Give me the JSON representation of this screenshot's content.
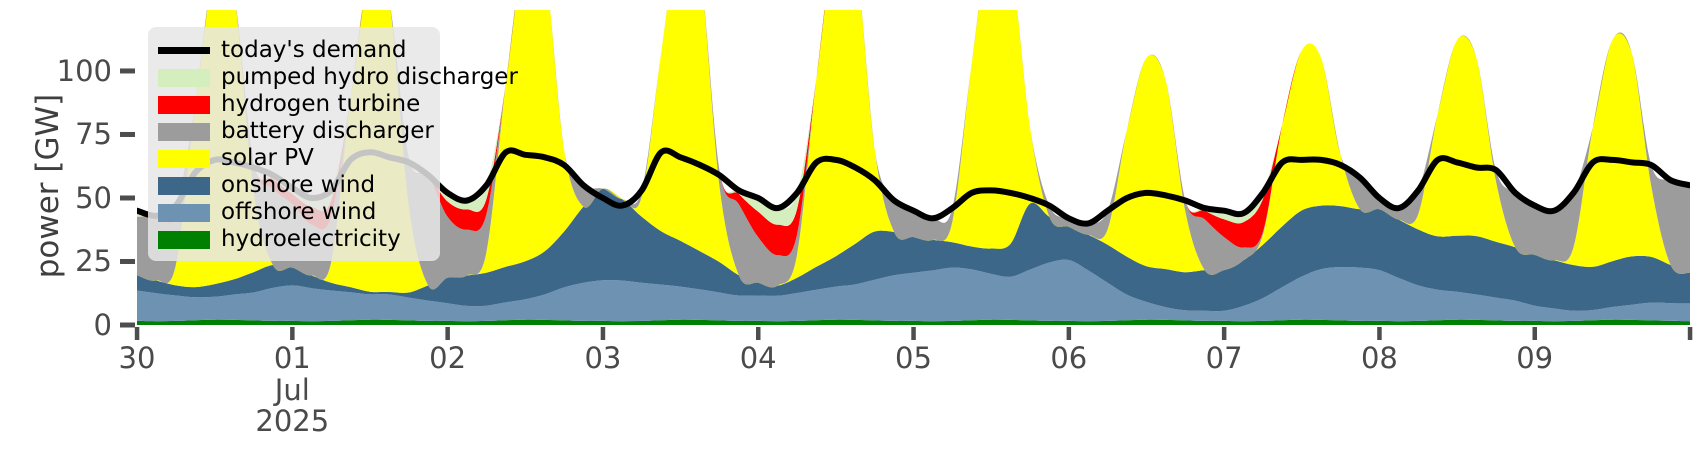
{
  "figure": {
    "background": "#ffffff"
  },
  "axes": {
    "ylabel": "power [GW]",
    "yticks": [
      0,
      25,
      50,
      75,
      100
    ],
    "xticks": [
      {
        "hour": 0,
        "label": "30",
        "sublabels": []
      },
      {
        "hour": 24,
        "label": "01",
        "sublabels": [
          "Jul",
          "2025"
        ]
      },
      {
        "hour": 48,
        "label": "02",
        "sublabels": []
      },
      {
        "hour": 72,
        "label": "03",
        "sublabels": []
      },
      {
        "hour": 96,
        "label": "04",
        "sublabels": []
      },
      {
        "hour": 120,
        "label": "05",
        "sublabels": []
      },
      {
        "hour": 144,
        "label": "06",
        "sublabels": []
      },
      {
        "hour": 168,
        "label": "07",
        "sublabels": []
      },
      {
        "hour": 192,
        "label": "08",
        "sublabels": []
      },
      {
        "hour": 216,
        "label": "09",
        "sublabels": []
      },
      {
        "hour": 240,
        "label": "",
        "sublabels": []
      }
    ],
    "tick_color": "#4d4d4d"
  },
  "legend": {
    "entries": [
      {
        "label": "today's demand",
        "swatch": "line",
        "color": "#000000"
      },
      {
        "label": "pumped hydro discharger",
        "swatch": "patch",
        "color": "#d4efbd"
      },
      {
        "label": "hydrogen turbine",
        "swatch": "patch",
        "color": "#ff0000"
      },
      {
        "label": "battery discharger",
        "swatch": "patch",
        "color": "#9c9c9c"
      },
      {
        "label": "solar PV",
        "swatch": "patch",
        "color": "#ffff00"
      },
      {
        "label": "onshore wind",
        "swatch": "patch",
        "color": "#3d6788"
      },
      {
        "label": "offshore wind",
        "swatch": "patch",
        "color": "#6d92b2"
      },
      {
        "label": "hydroelectricity",
        "swatch": "patch",
        "color": "#008000"
      }
    ]
  },
  "chart_data": {
    "type": "area",
    "title": "",
    "ylabel": "power [GW]",
    "ylim": [
      0,
      124
    ],
    "x_start_hour": 0,
    "x_step_hours": 3,
    "x_span_hours": 240,
    "x_axis_dates": [
      "2025-06-30",
      "2025-07-09"
    ],
    "demand": {
      "name": "today's demand",
      "color": "#000000",
      "values": [
        45,
        43,
        47,
        60,
        65,
        64,
        62,
        59,
        54,
        50,
        53,
        65,
        68,
        66,
        64,
        59,
        52,
        49,
        55,
        68,
        67,
        66,
        63,
        55,
        50,
        47,
        53,
        68,
        66,
        63,
        59,
        53,
        50,
        46,
        52,
        64,
        65,
        62,
        57,
        49,
        45,
        42,
        46,
        52,
        53,
        52,
        50,
        47,
        42,
        40,
        45,
        50,
        52,
        51,
        49,
        46,
        45,
        44,
        52,
        64,
        65,
        65,
        63,
        58,
        50,
        46,
        53,
        65,
        64,
        62,
        61,
        52,
        47,
        45,
        52,
        64,
        65,
        64,
        63,
        57,
        55
      ]
    },
    "series": [
      {
        "name": "hydroelectricity",
        "color": "#008000",
        "values": [
          1.6,
          1.5,
          1.6,
          1.9,
          2.1,
          2.0,
          1.8,
          1.6,
          1.6,
          1.5,
          1.6,
          1.9,
          2.1,
          2.0,
          1.8,
          1.6,
          1.6,
          1.5,
          1.6,
          1.9,
          2.1,
          2.0,
          1.8,
          1.6,
          1.6,
          1.5,
          1.6,
          1.9,
          2.1,
          2.0,
          1.8,
          1.6,
          1.6,
          1.5,
          1.6,
          1.9,
          2.1,
          2.0,
          1.8,
          1.6,
          1.6,
          1.5,
          1.6,
          1.9,
          2.1,
          2.0,
          1.8,
          1.6,
          1.6,
          1.5,
          1.6,
          1.9,
          2.1,
          2.0,
          1.8,
          1.6,
          1.6,
          1.5,
          1.6,
          1.9,
          2.1,
          2.0,
          1.8,
          1.6,
          1.6,
          1.5,
          1.6,
          1.9,
          2.1,
          2.0,
          1.8,
          1.6,
          1.6,
          1.5,
          1.6,
          1.9,
          2.1,
          2.0,
          1.8,
          1.6,
          1.5
        ]
      },
      {
        "name": "offshore wind",
        "color": "#6d92b2",
        "values": [
          12,
          11,
          10,
          9,
          9,
          10,
          11,
          13,
          14,
          13,
          12,
          11,
          10,
          10,
          9,
          8,
          7,
          6,
          6,
          7,
          8,
          10,
          13,
          15,
          16,
          16,
          15,
          14,
          13,
          12,
          11,
          10,
          10,
          10,
          11,
          12,
          13,
          14,
          16,
          18,
          19,
          20,
          21,
          20,
          18,
          17,
          20,
          23,
          24,
          20,
          15,
          10,
          7,
          5,
          4,
          4,
          4,
          6,
          9,
          13,
          17,
          20,
          21,
          21,
          20,
          17,
          14,
          12,
          11,
          10,
          9,
          8,
          6,
          5,
          4,
          4,
          5,
          6,
          7,
          7,
          7
        ]
      },
      {
        "name": "onshore wind",
        "color": "#3d6788",
        "values": [
          6,
          5,
          4,
          4,
          5,
          6,
          8,
          9,
          7,
          5,
          3,
          2,
          1,
          1,
          2,
          6,
          10,
          12,
          13,
          14,
          15,
          17,
          22,
          30,
          36,
          32,
          26,
          21,
          18,
          15,
          12,
          8,
          5,
          4,
          6,
          9,
          12,
          16,
          19,
          17,
          14,
          12,
          10,
          9,
          10,
          13,
          26,
          18,
          13,
          14,
          15,
          15,
          14,
          15,
          15,
          16,
          16,
          18,
          21,
          24,
          26,
          25,
          24,
          23,
          24,
          23,
          22,
          21,
          22,
          23,
          22,
          21,
          20,
          19,
          18,
          17,
          18,
          19,
          18,
          15,
          12
        ]
      },
      {
        "name": "solar PV",
        "color": "#ffff00",
        "values": [
          0,
          0,
          8,
          72,
          124,
          112,
          32,
          0,
          0,
          0,
          8,
          74,
          126,
          114,
          34,
          0,
          0,
          0,
          8,
          72,
          124,
          112,
          32,
          0,
          0,
          0,
          8,
          70,
          123,
          111,
          30,
          0,
          0,
          0,
          9,
          74,
          126,
          114,
          32,
          0,
          0,
          0,
          8,
          72,
          124,
          112,
          30,
          0,
          0,
          0,
          6,
          50,
          82,
          74,
          24,
          0,
          0,
          0,
          4,
          40,
          63,
          58,
          20,
          0,
          0,
          0,
          6,
          48,
          77,
          70,
          24,
          0,
          0,
          0,
          7,
          55,
          87,
          80,
          28,
          0,
          0
        ]
      },
      {
        "name": "battery discharger",
        "color": "#9c9c9c",
        "values": [
          23,
          25.5,
          20,
          0,
          0,
          0,
          11.2,
          30,
          25,
          20,
          18,
          0,
          0,
          0,
          19.2,
          43.4,
          24,
          18,
          15,
          0,
          0,
          0,
          0,
          8.4,
          0,
          0,
          2.4,
          0,
          0,
          0,
          6.2,
          28,
          18,
          12,
          8,
          0,
          0,
          0,
          0,
          12.4,
          10.4,
          8.5,
          5.4,
          0,
          0,
          0,
          0,
          4.4,
          3.4,
          4.5,
          7.4,
          0,
          0,
          0,
          4.2,
          20,
          13,
          5,
          1,
          0,
          0,
          0,
          0,
          12.4,
          4.4,
          4.5,
          9.4,
          0,
          0,
          0,
          4.2,
          21.4,
          19.4,
          19.5,
          21.4,
          0,
          0,
          0,
          8.2,
          33.4,
          34.5
        ]
      },
      {
        "name": "hydrogen turbine",
        "color": "#ff0000",
        "values": [
          0,
          0,
          2,
          0,
          0,
          0,
          0,
          4,
          4,
          7,
          6.4,
          0,
          0,
          0,
          0,
          0,
          6,
          8,
          6,
          0,
          0,
          0,
          0,
          0,
          0,
          0,
          0,
          0,
          0,
          0,
          0,
          4,
          10,
          12,
          10,
          0,
          0,
          0,
          0,
          0,
          0,
          0,
          0,
          0,
          0,
          0,
          0,
          0,
          0,
          0,
          0,
          0,
          0,
          0,
          0,
          3.4,
          7,
          10,
          13,
          0,
          0,
          0,
          0,
          0,
          0,
          0,
          0,
          0,
          0,
          0,
          0,
          0,
          0,
          0,
          0,
          0,
          0,
          0,
          0,
          0,
          0
        ]
      },
      {
        "name": "pumped hydro discharger",
        "color": "#d4efbd",
        "values": [
          2.4,
          0,
          1.4,
          0,
          0,
          0,
          0,
          1.4,
          2.4,
          3.5,
          4,
          0,
          0,
          0,
          0,
          0,
          3.4,
          3.5,
          5.4,
          0,
          0,
          0,
          0,
          0,
          0,
          0,
          0,
          0,
          0,
          0,
          0,
          1.4,
          5.4,
          6.5,
          6.4,
          0,
          0,
          0,
          0,
          0,
          0,
          0,
          0,
          0,
          0,
          0,
          0,
          0,
          0,
          0,
          0,
          0,
          0,
          0,
          0,
          1,
          3.4,
          3.5,
          2.4,
          0,
          0,
          0,
          0,
          0,
          0,
          0,
          0,
          0,
          0,
          0,
          0,
          0,
          0,
          0,
          0,
          0,
          0,
          0,
          0,
          0,
          0
        ]
      }
    ]
  }
}
